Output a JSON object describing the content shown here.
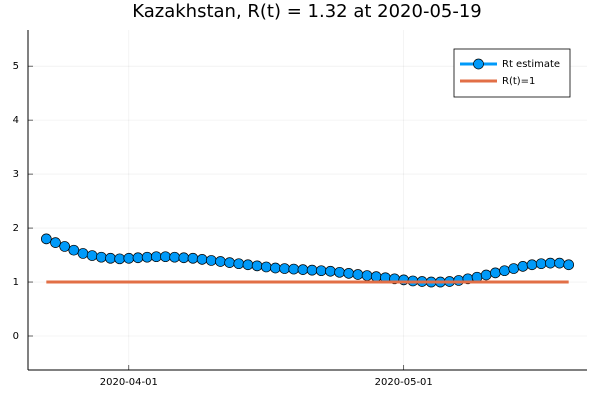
{
  "chart_data": {
    "type": "line",
    "title": "Kazakhstan, R(t) = 1.32 at 2020-05-19",
    "series": [
      {
        "name": "Rt estimate",
        "color": "#009af9",
        "markers": true,
        "x": [
          "2020-03-23",
          "2020-03-24",
          "2020-03-25",
          "2020-03-26",
          "2020-03-27",
          "2020-03-28",
          "2020-03-29",
          "2020-03-30",
          "2020-03-31",
          "2020-04-01",
          "2020-04-02",
          "2020-04-03",
          "2020-04-04",
          "2020-04-05",
          "2020-04-06",
          "2020-04-07",
          "2020-04-08",
          "2020-04-09",
          "2020-04-10",
          "2020-04-11",
          "2020-04-12",
          "2020-04-13",
          "2020-04-14",
          "2020-04-15",
          "2020-04-16",
          "2020-04-17",
          "2020-04-18",
          "2020-04-19",
          "2020-04-20",
          "2020-04-21",
          "2020-04-22",
          "2020-04-23",
          "2020-04-24",
          "2020-04-25",
          "2020-04-26",
          "2020-04-27",
          "2020-04-28",
          "2020-04-29",
          "2020-04-30",
          "2020-05-01",
          "2020-05-02",
          "2020-05-03",
          "2020-05-04",
          "2020-05-05",
          "2020-05-06",
          "2020-05-07",
          "2020-05-08",
          "2020-05-09",
          "2020-05-10",
          "2020-05-11",
          "2020-05-12",
          "2020-05-13",
          "2020-05-14",
          "2020-05-15",
          "2020-05-16",
          "2020-05-17",
          "2020-05-18",
          "2020-05-19"
        ],
        "values": [
          1.8,
          1.73,
          1.66,
          1.59,
          1.53,
          1.49,
          1.46,
          1.44,
          1.43,
          1.44,
          1.45,
          1.46,
          1.47,
          1.47,
          1.46,
          1.45,
          1.44,
          1.42,
          1.4,
          1.38,
          1.36,
          1.34,
          1.32,
          1.3,
          1.28,
          1.26,
          1.25,
          1.24,
          1.23,
          1.22,
          1.21,
          1.2,
          1.18,
          1.16,
          1.14,
          1.12,
          1.1,
          1.08,
          1.06,
          1.04,
          1.02,
          1.01,
          1.0,
          1.0,
          1.01,
          1.03,
          1.06,
          1.09,
          1.13,
          1.17,
          1.21,
          1.25,
          1.29,
          1.32,
          1.34,
          1.35,
          1.35,
          1.32
        ]
      },
      {
        "name": "R(t)=1",
        "color": "#e26f46",
        "markers": false,
        "x": [
          "2020-03-23",
          "2020-05-19"
        ],
        "values": [
          1,
          1
        ]
      }
    ],
    "xlim": [
      "2020-03-21",
      "2020-05-21"
    ],
    "xticks": [
      "2020-04-01",
      "2020-05-01"
    ],
    "ylim": [
      -0.63,
      5.67
    ],
    "yticks": [
      0,
      1,
      2,
      3,
      4,
      5
    ],
    "grid": true,
    "legend": "top-right"
  }
}
